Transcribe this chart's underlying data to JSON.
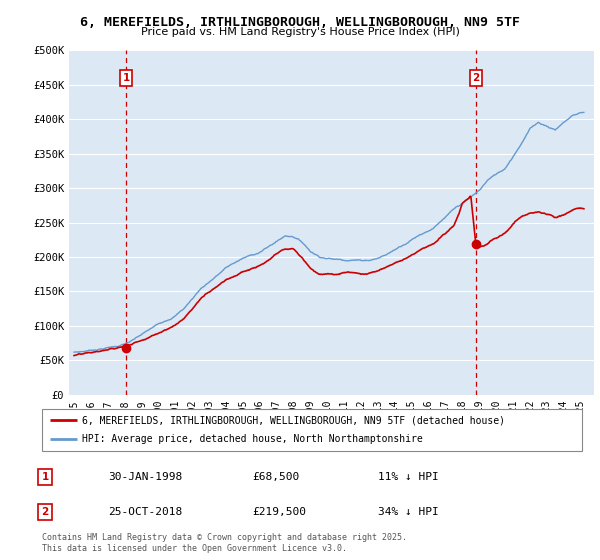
{
  "title": "6, MEREFIELDS, IRTHLINGBOROUGH, WELLINGBOROUGH, NN9 5TF",
  "subtitle": "Price paid vs. HM Land Registry's House Price Index (HPI)",
  "ylim": [
    0,
    500000
  ],
  "yticks": [
    0,
    50000,
    100000,
    150000,
    200000,
    250000,
    300000,
    350000,
    400000,
    450000,
    500000
  ],
  "ytick_labels": [
    "£0",
    "£50K",
    "£100K",
    "£150K",
    "£200K",
    "£250K",
    "£300K",
    "£350K",
    "£400K",
    "£450K",
    "£500K"
  ],
  "sale1_date_num": 1998.08,
  "sale1_price": 68500,
  "sale1_label": "1",
  "sale1_text": "30-JAN-1998",
  "sale1_amount": "£68,500",
  "sale1_hpi": "11% ↓ HPI",
  "sale2_date_num": 2018.82,
  "sale2_price": 219500,
  "sale2_label": "2",
  "sale2_text": "25-OCT-2018",
  "sale2_amount": "£219,500",
  "sale2_hpi": "34% ↓ HPI",
  "legend_label1": "6, MEREFIELDS, IRTHLINGBOROUGH, WELLINGBOROUGH, NN9 5TF (detached house)",
  "legend_label2": "HPI: Average price, detached house, North Northamptonshire",
  "footer": "Contains HM Land Registry data © Crown copyright and database right 2025.\nThis data is licensed under the Open Government Licence v3.0.",
  "price_color": "#cc0000",
  "hpi_color": "#6699cc",
  "vline_color": "#cc0000",
  "plot_bg_color": "#dce9f5",
  "bg_color": "#ffffff",
  "grid_color": "#ffffff",
  "xlim_left": 1994.7,
  "xlim_right": 2025.8,
  "hpi_points_x": [
    1995.0,
    1995.5,
    1996.0,
    1996.5,
    1997.0,
    1997.5,
    1998.0,
    1998.5,
    1999.0,
    1999.5,
    2000.0,
    2000.5,
    2001.0,
    2001.5,
    2002.0,
    2002.5,
    2003.0,
    2003.5,
    2004.0,
    2004.5,
    2005.0,
    2005.5,
    2006.0,
    2006.5,
    2007.0,
    2007.5,
    2008.0,
    2008.5,
    2009.0,
    2009.5,
    2010.0,
    2010.5,
    2011.0,
    2011.5,
    2012.0,
    2012.5,
    2013.0,
    2013.5,
    2014.0,
    2014.5,
    2015.0,
    2015.5,
    2016.0,
    2016.5,
    2017.0,
    2017.5,
    2018.0,
    2018.5,
    2019.0,
    2019.5,
    2020.0,
    2020.5,
    2021.0,
    2021.5,
    2022.0,
    2022.5,
    2023.0,
    2023.5,
    2024.0,
    2024.5,
    2025.0
  ],
  "hpi_points_y": [
    62000,
    63000,
    65000,
    67000,
    69000,
    71000,
    74000,
    79000,
    86000,
    93000,
    100000,
    107000,
    114000,
    124000,
    138000,
    153000,
    163000,
    173000,
    183000,
    190000,
    196000,
    200000,
    205000,
    212000,
    220000,
    228000,
    228000,
    220000,
    207000,
    200000,
    198000,
    196000,
    196000,
    197000,
    196000,
    197000,
    200000,
    205000,
    212000,
    220000,
    228000,
    236000,
    242000,
    250000,
    260000,
    270000,
    278000,
    286000,
    295000,
    310000,
    318000,
    326000,
    345000,
    365000,
    385000,
    395000,
    390000,
    385000,
    395000,
    405000,
    410000
  ],
  "red_points_x": [
    1995.0,
    1995.5,
    1996.0,
    1996.5,
    1997.0,
    1997.5,
    1998.08,
    1998.5,
    1999.0,
    1999.5,
    2000.0,
    2000.5,
    2001.0,
    2001.5,
    2002.0,
    2002.5,
    2003.0,
    2003.5,
    2004.0,
    2004.5,
    2005.0,
    2005.5,
    2006.0,
    2006.5,
    2007.0,
    2007.5,
    2008.0,
    2008.5,
    2009.0,
    2009.5,
    2010.0,
    2010.5,
    2011.0,
    2011.5,
    2012.0,
    2012.5,
    2013.0,
    2013.5,
    2014.0,
    2014.5,
    2015.0,
    2015.5,
    2016.0,
    2016.5,
    2017.0,
    2017.5,
    2017.8,
    2018.0,
    2018.5,
    2018.82,
    2019.0,
    2019.5,
    2020.0,
    2020.5,
    2021.0,
    2021.5,
    2022.0,
    2022.5,
    2023.0,
    2023.5,
    2024.0,
    2024.5,
    2025.0
  ],
  "red_points_y": [
    57000,
    58000,
    59000,
    61000,
    63000,
    65000,
    68500,
    72000,
    78000,
    84000,
    90000,
    97000,
    103000,
    113000,
    127000,
    142000,
    152000,
    162000,
    172000,
    178000,
    184000,
    188000,
    192000,
    198000,
    207000,
    213000,
    213000,
    200000,
    185000,
    178000,
    178000,
    176000,
    178000,
    179000,
    178000,
    180000,
    183000,
    188000,
    196000,
    202000,
    210000,
    218000,
    224000,
    232000,
    242000,
    253000,
    270000,
    285000,
    295000,
    219500,
    220000,
    225000,
    232000,
    238000,
    252000,
    262000,
    268000,
    270000,
    265000,
    260000,
    262000,
    268000,
    270000
  ]
}
